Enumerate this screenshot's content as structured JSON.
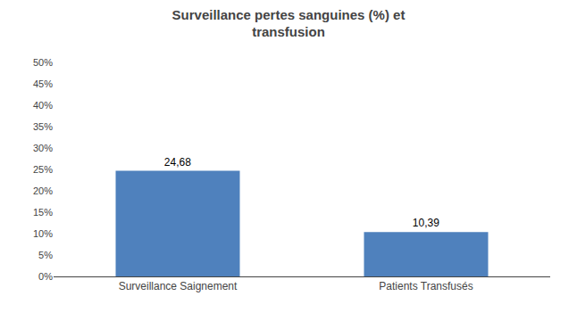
{
  "chart_data": {
    "type": "bar",
    "title": "Surveillance pertes sanguines (%) et\ntransfusion",
    "categories": [
      "Surveillance Saignement",
      "Patients Transfusés"
    ],
    "values": [
      24.68,
      10.39
    ],
    "value_labels": [
      "24,68",
      "10,39"
    ],
    "data_labels": true,
    "color": "#4f81bd",
    "ylim": [
      0,
      50
    ],
    "yticks": [
      {
        "value": 0,
        "label": "0%"
      },
      {
        "value": 5,
        "label": "5%"
      },
      {
        "value": 10,
        "label": "10%"
      },
      {
        "value": 15,
        "label": "15%"
      },
      {
        "value": 20,
        "label": "20%"
      },
      {
        "value": 25,
        "label": "25%"
      },
      {
        "value": 30,
        "label": "30%"
      },
      {
        "value": 35,
        "label": "35%"
      },
      {
        "value": 40,
        "label": "40%"
      },
      {
        "value": 45,
        "label": "45%"
      },
      {
        "value": 50,
        "label": "50%"
      }
    ],
    "grid": false
  }
}
